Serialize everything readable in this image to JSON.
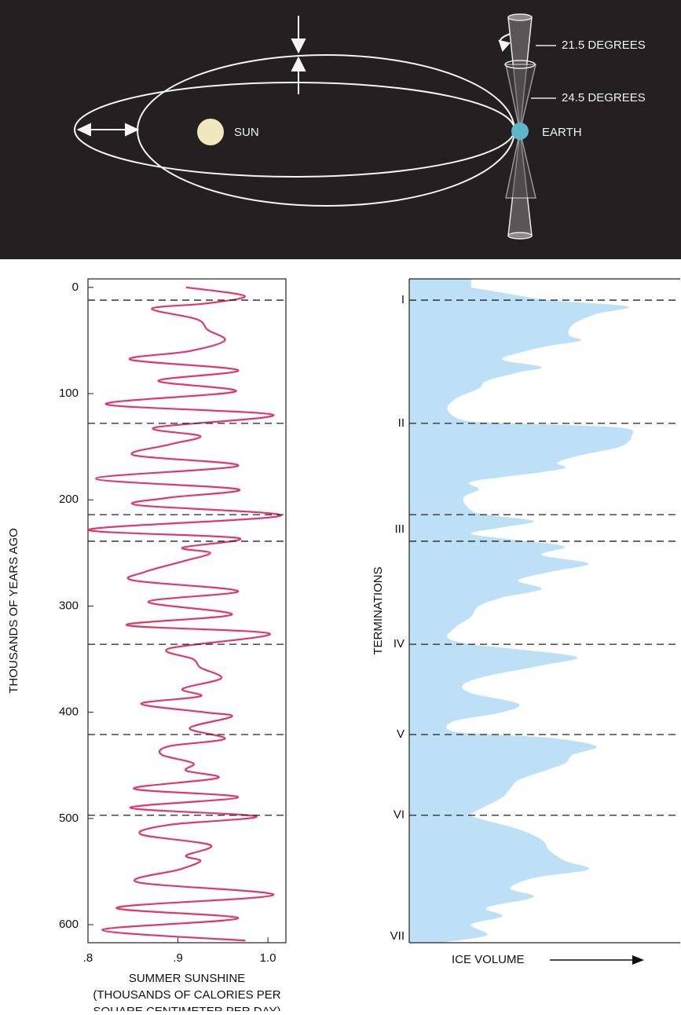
{
  "diagram": {
    "tilt_labels": [
      "21.5 DEGREES",
      "24.5 DEGREES"
    ],
    "sun": "SUN",
    "earth": "EARTH"
  },
  "chart_data": [
    {
      "type": "line",
      "y_label": "THOUSANDS OF YEARS AGO",
      "x_label": [
        "SUMMER SUNSHINE",
        "(THOUSANDS OF CALORIES PER",
        "SQUARE CENTIMETER PER DAY)"
      ],
      "y": [
        0,
        8,
        15,
        20,
        30,
        40,
        50,
        60,
        68,
        78,
        88,
        98,
        110,
        120,
        132,
        140,
        148,
        158,
        168,
        180,
        190,
        198,
        205,
        215,
        228,
        236,
        245,
        250,
        258,
        268,
        276,
        286,
        296,
        308,
        318,
        326,
        340,
        350,
        358,
        368,
        378,
        385,
        392,
        400,
        404,
        415,
        425,
        432,
        440,
        448,
        455,
        462,
        472,
        480,
        490,
        498,
        506,
        515,
        525,
        535,
        540,
        548,
        560,
        572,
        584,
        594,
        605,
        615
      ],
      "series": [
        {
          "color": "#e0386a",
          "values": [
            0.909,
            0.974,
            0.933,
            0.871,
            0.921,
            0.933,
            0.952,
            0.913,
            0.847,
            0.967,
            0.878,
            0.964,
            0.82,
            1.006,
            0.874,
            0.925,
            0.89,
            0.851,
            0.967,
            0.809,
            0.967,
            0.89,
            0.855,
            1.014,
            0.801,
            0.967,
            0.905,
            0.936,
            0.905,
            0.863,
            0.851,
            0.967,
            0.867,
            0.96,
            0.843,
            1.002,
            0.89,
            0.917,
            0.925,
            0.948,
            0.905,
            0.925,
            0.859,
            0.929,
            0.96,
            0.913,
            0.952,
            0.89,
            0.882,
            0.917,
            0.909,
            0.944,
            0.851,
            0.967,
            0.847,
            0.987,
            0.89,
            0.859,
            0.936,
            0.909,
            0.925,
            0.902,
            0.855,
            1.006,
            0.832,
            0.967,
            0.816,
            0.975
          ]
        }
      ],
      "xlim": [
        0.8,
        1.02
      ],
      "ylim": [
        617,
        -8
      ],
      "xticks": [
        {
          "value": 0.8,
          "label": ".8"
        },
        {
          "value": 0.9,
          "label": ".9"
        },
        {
          "value": 1.0,
          "label": "1.0"
        }
      ],
      "yticks": [
        0,
        100,
        200,
        300,
        400,
        500,
        600
      ],
      "reference_lines": [
        12,
        128,
        214,
        239,
        336,
        421,
        497
      ]
    },
    {
      "type": "area",
      "y_label": "TERMINATIONS",
      "x_label": "ICE VOLUME",
      "y": [
        0,
        5,
        12,
        18,
        25,
        35,
        45,
        50,
        55,
        60,
        68,
        75,
        80,
        88,
        95,
        105,
        115,
        125,
        128,
        132,
        140,
        150,
        158,
        165,
        170,
        175,
        183,
        190,
        198,
        210,
        214,
        220,
        226,
        232,
        238,
        244,
        252,
        260,
        268,
        276,
        284,
        292,
        300,
        310,
        320,
        330,
        336,
        340,
        348,
        356,
        366,
        374,
        382,
        392,
        400,
        408,
        416,
        420,
        424,
        432,
        440,
        448,
        456,
        464,
        472,
        480,
        488,
        496,
        500,
        510,
        520,
        530,
        540,
        548,
        556,
        566,
        574,
        584,
        592,
        600,
        610,
        617
      ],
      "series": [
        {
          "color": "#bde0f6",
          "values": [
            79,
            119,
            179,
            279,
            239,
            209,
            204,
            219,
            179,
            149,
            119,
            169,
            139,
            99,
            89,
            59,
            49,
            69,
            129,
            269,
            284,
            269,
            219,
            189,
            199,
            159,
            79,
            89,
            69,
            79,
            99,
            159,
            119,
            79,
            139,
            199,
            169,
            229,
            179,
            139,
            169,
            119,
            89,
            79,
            59,
            49,
            79,
            129,
            214,
            169,
            99,
            69,
            79,
            139,
            119,
            59,
            49,
            79,
            179,
            239,
            209,
            199,
            169,
            139,
            129,
            119,
            99,
            79,
            89,
            139,
            169,
            179,
            199,
            229,
            159,
            129,
            159,
            99,
            119,
            79,
            99,
            39
          ]
        }
      ],
      "xlim": [
        0,
        346
      ],
      "ylim": [
        617,
        -8
      ],
      "terminations": [
        "I",
        "II",
        "III",
        "IV",
        "V",
        "VI",
        "VII"
      ],
      "termination_ages": [
        12,
        128,
        228,
        336,
        421,
        497,
        611
      ]
    }
  ]
}
